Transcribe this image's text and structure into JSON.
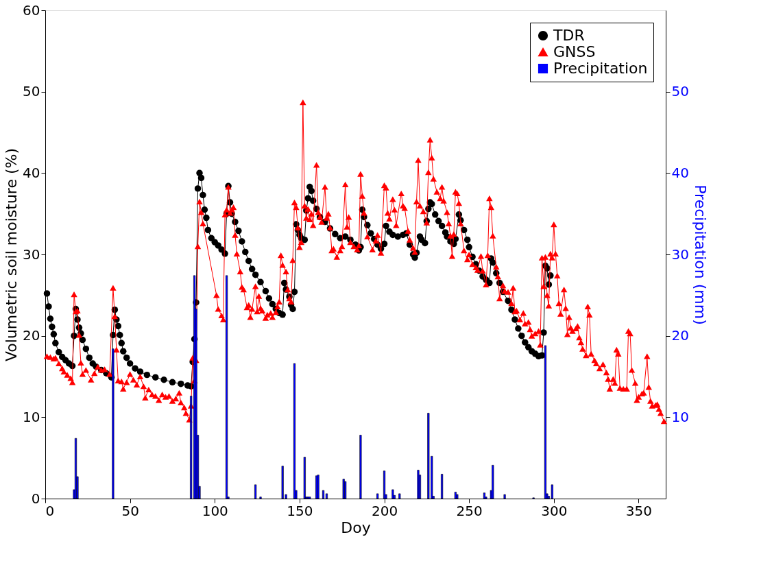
{
  "chart_data": {
    "type": "line",
    "xlabel": "Doy",
    "ylabel": "Volumetric soil moisture (%)",
    "y2label": "Precipitation (mm)",
    "xlim": [
      0,
      366
    ],
    "xticks": [
      0,
      50,
      100,
      150,
      200,
      250,
      300,
      350
    ],
    "ylim": [
      0,
      60
    ],
    "yticks": [
      0,
      10,
      20,
      30,
      40,
      50,
      60
    ],
    "y2lim": [
      0,
      60
    ],
    "y2ticks": [
      10,
      20,
      30,
      40,
      50
    ],
    "grid": false,
    "legend": "top right",
    "series": [
      {
        "name": "TDR",
        "marker": "circle",
        "color": "#000000",
        "x": [
          1,
          2,
          3,
          4,
          5,
          6,
          8,
          10,
          12,
          14,
          16,
          17,
          18,
          19,
          20,
          21,
          22,
          24,
          26,
          28,
          30,
          33,
          36,
          39,
          40,
          41,
          42,
          43,
          44,
          45,
          46,
          48,
          50,
          53,
          56,
          60,
          65,
          70,
          75,
          80,
          84,
          86,
          87,
          88,
          89,
          90,
          91,
          92,
          93,
          94,
          95,
          96,
          98,
          100,
          102,
          104,
          106,
          107,
          108,
          109,
          110,
          112,
          114,
          116,
          118,
          120,
          122,
          124,
          127,
          130,
          132,
          134,
          136,
          138,
          140,
          141,
          142,
          144,
          145,
          146,
          147,
          148,
          149,
          150,
          151,
          153,
          154,
          155,
          156,
          157,
          158,
          160,
          162,
          165,
          168,
          171,
          174,
          177,
          180,
          183,
          185,
          186,
          187,
          188,
          190,
          192,
          194,
          196,
          198,
          200,
          201,
          203,
          205,
          208,
          211,
          213,
          215,
          217,
          218,
          219,
          221,
          222,
          224,
          225,
          226,
          227,
          228,
          230,
          232,
          234,
          236,
          237,
          239,
          241,
          242,
          244,
          245,
          247,
          249,
          250,
          252,
          254,
          256,
          258,
          260,
          262,
          263,
          264,
          266,
          268,
          270,
          273,
          275,
          277,
          279,
          281,
          283,
          285,
          287,
          289,
          291,
          293,
          294,
          295,
          296,
          297,
          298
        ],
        "values": [
          25.2,
          23.6,
          22.1,
          21.1,
          20.2,
          19.1,
          18.0,
          17.4,
          17.0,
          16.6,
          16.3,
          20.0,
          23.3,
          22.0,
          21.0,
          20.3,
          19.5,
          18.4,
          17.3,
          16.6,
          16.2,
          15.8,
          15.4,
          14.9,
          20.1,
          23.2,
          22.0,
          21.2,
          20.1,
          19.1,
          18.1,
          17.3,
          16.6,
          16.0,
          15.6,
          15.2,
          14.9,
          14.6,
          14.3,
          14.1,
          13.9,
          13.8,
          16.8,
          19.6,
          24.1,
          38.1,
          40.0,
          39.4,
          37.3,
          35.5,
          34.5,
          33.0,
          32.0,
          31.5,
          31.1,
          30.6,
          30.1,
          35.0,
          38.4,
          36.4,
          35.0,
          34.0,
          32.9,
          31.6,
          30.3,
          29.2,
          28.2,
          27.5,
          26.6,
          25.5,
          24.6,
          23.9,
          23.3,
          22.8,
          22.6,
          26.5,
          25.7,
          24.8,
          23.8,
          23.3,
          25.4,
          33.7,
          33.0,
          32.4,
          32.0,
          31.8,
          35.4,
          36.9,
          38.3,
          37.8,
          36.6,
          35.6,
          34.6,
          34.0,
          33.2,
          32.5,
          32.0,
          32.2,
          31.8,
          31.2,
          30.5,
          30.9,
          35.5,
          34.6,
          33.6,
          32.6,
          31.9,
          31.2,
          30.7,
          31.3,
          33.5,
          32.8,
          32.4,
          32.2,
          32.4,
          32.6,
          31.2,
          30.0,
          29.6,
          30.2,
          32.2,
          31.8,
          31.4,
          34.1,
          35.6,
          36.4,
          36.2,
          34.9,
          34.1,
          33.5,
          32.7,
          32.2,
          31.6,
          31.3,
          31.9,
          34.9,
          34.2,
          33.0,
          31.8,
          30.9,
          29.7,
          28.8,
          28.0,
          27.3,
          26.9,
          26.5,
          29.5,
          29.0,
          27.7,
          26.5,
          25.4,
          24.3,
          23.2,
          22.0,
          20.9,
          20.0,
          19.2,
          18.6,
          18.1,
          17.8,
          17.5,
          17.6,
          20.4,
          28.6,
          28.3,
          26.3,
          27.4
        ]
      },
      {
        "name": "GNSS",
        "marker": "triangle",
        "color": "#ff0000",
        "x": [
          1,
          3,
          5,
          6,
          8,
          10,
          11,
          13,
          15,
          16,
          17,
          18,
          19,
          20,
          21,
          22,
          24,
          27,
          29,
          31,
          33,
          35,
          38,
          40,
          41,
          42,
          43,
          45,
          46,
          48,
          50,
          52,
          54,
          56,
          58,
          59,
          61,
          63,
          65,
          67,
          69,
          71,
          73,
          75,
          77,
          79,
          80,
          82,
          83,
          85,
          86,
          87,
          88,
          89,
          90,
          91,
          92,
          93,
          101,
          102,
          104,
          105,
          106,
          107,
          108,
          109,
          110,
          111,
          112,
          113,
          115,
          116,
          117,
          119,
          120,
          121,
          122,
          124,
          125,
          126,
          127,
          128,
          130,
          131,
          133,
          134,
          136,
          137,
          138,
          139,
          140,
          142,
          143,
          144,
          145,
          146,
          147,
          148,
          149,
          150,
          151,
          152,
          153,
          154,
          155,
          156,
          157,
          158,
          160,
          161,
          162,
          163,
          165,
          166,
          167,
          168,
          169,
          170,
          172,
          174,
          175,
          177,
          178,
          179,
          180,
          182,
          184,
          185,
          186,
          187,
          188,
          190,
          193,
          195,
          196,
          198,
          200,
          201,
          202,
          203,
          205,
          206,
          207,
          210,
          211,
          212,
          214,
          215,
          217,
          218,
          219,
          220,
          221,
          223,
          225,
          226,
          227,
          228,
          229,
          231,
          233,
          234,
          235,
          237,
          238,
          239,
          240,
          241,
          242,
          243,
          244,
          245,
          247,
          249,
          250,
          252,
          254,
          255,
          257,
          258,
          260,
          261,
          262,
          263,
          264,
          266,
          267,
          268,
          270,
          271,
          273,
          275,
          276,
          277,
          278,
          280,
          282,
          283,
          285,
          286,
          287,
          289,
          291,
          292,
          293,
          294,
          295,
          296,
          297,
          298,
          299,
          300,
          301,
          302,
          303,
          304,
          306,
          307,
          308,
          309,
          310,
          311,
          313,
          314,
          315,
          316,
          317,
          319,
          320,
          321,
          322,
          324,
          325,
          327,
          329,
          331,
          332,
          333,
          335,
          336,
          337,
          338,
          339,
          341,
          343,
          344,
          345,
          346,
          348,
          349,
          350,
          352,
          353,
          355,
          356,
          357,
          358,
          360,
          361,
          362,
          363,
          365
        ],
        "values": [
          17.5,
          17.4,
          17.2,
          17.3,
          16.6,
          16.0,
          15.6,
          15.2,
          14.8,
          14.3,
          25.1,
          23.0,
          23.1,
          20.1,
          16.7,
          15.3,
          15.8,
          14.6,
          15.4,
          16.2,
          15.8,
          15.9,
          15.3,
          25.9,
          22.4,
          18.3,
          14.5,
          14.4,
          13.5,
          14.3,
          15.3,
          14.6,
          14.0,
          15.0,
          13.8,
          12.4,
          13.4,
          12.8,
          12.6,
          12.1,
          12.8,
          12.5,
          12.6,
          12.0,
          12.3,
          13.0,
          11.8,
          11.2,
          10.5,
          9.7,
          11.4,
          17.3,
          14.5,
          17.0,
          31.0,
          36.5,
          35.2,
          33.8,
          25.0,
          23.3,
          22.5,
          22.0,
          34.9,
          35.5,
          38.3,
          35.1,
          35.5,
          35.8,
          32.4,
          30.1,
          27.9,
          26.0,
          25.7,
          23.5,
          23.8,
          22.3,
          23.3,
          26.1,
          23.0,
          24.9,
          23.4,
          23.1,
          22.2,
          22.6,
          22.8,
          22.3,
          22.9,
          23.6,
          24.2,
          29.9,
          28.7,
          27.9,
          25.7,
          24.6,
          24.2,
          29.3,
          36.4,
          35.8,
          33.3,
          30.9,
          31.5,
          48.7,
          36.0,
          34.5,
          35.6,
          34.3,
          35.0,
          33.6,
          41.0,
          35.2,
          34.6,
          34.0,
          38.3,
          34.5,
          35.0,
          33.3,
          30.5,
          30.7,
          29.7,
          30.5,
          31.0,
          38.6,
          33.4,
          34.6,
          31.5,
          31.0,
          30.6,
          31.1,
          39.9,
          37.2,
          35.1,
          32.2,
          30.6,
          31.7,
          32.4,
          30.2,
          38.5,
          38.2,
          35.1,
          34.4,
          36.8,
          35.5,
          33.6,
          37.5,
          36.0,
          35.7,
          32.9,
          31.8,
          30.8,
          30.3,
          36.5,
          41.6,
          36.0,
          35.3,
          33.9,
          40.1,
          44.1,
          41.9,
          39.3,
          37.7,
          36.9,
          38.3,
          36.6,
          35.2,
          33.8,
          32.3,
          29.8,
          32.5,
          37.7,
          37.5,
          36.3,
          33.8,
          30.5,
          29.4,
          30.0,
          28.8,
          28.4,
          28.1,
          29.8,
          28.0,
          26.3,
          29.9,
          36.9,
          35.8,
          32.3,
          28.5,
          27.3,
          24.6,
          26.2,
          25.5,
          25.4,
          24.0,
          25.9,
          23.0,
          23.1,
          22.0,
          22.8,
          21.5,
          21.7,
          20.8,
          20.0,
          20.3,
          20.6,
          18.9,
          29.6,
          26.1,
          29.7,
          25.0,
          23.7,
          30.1,
          29.6,
          33.7,
          30.1,
          27.4,
          24.0,
          22.7,
          25.7,
          23.4,
          20.2,
          22.3,
          21.0,
          20.6,
          20.9,
          21.2,
          19.8,
          19.2,
          18.4,
          17.6,
          23.6,
          22.6,
          17.8,
          17.0,
          16.6,
          16.0,
          16.5,
          15.5,
          14.7,
          13.5,
          14.7,
          14.2,
          18.3,
          17.8,
          13.6,
          13.5,
          13.5,
          20.6,
          20.3,
          15.8,
          14.2,
          12.1,
          12.5,
          12.9,
          13.0,
          17.5,
          13.7,
          12.0,
          11.4,
          11.5,
          11.6,
          11.0,
          10.5,
          9.5
        ]
      },
      {
        "name": "Precipitation",
        "type": "bar",
        "axis": "y2",
        "color": "#0000ff",
        "x": [
          17,
          18,
          19,
          40,
          86,
          88,
          89,
          90,
          91,
          107,
          108,
          124,
          127,
          140,
          142,
          147,
          148,
          153,
          154,
          155,
          156,
          160,
          161,
          164,
          166,
          176,
          177,
          186,
          196,
          200,
          201,
          205,
          206,
          209,
          220,
          221,
          226,
          228,
          229,
          234,
          242,
          243,
          259,
          260,
          263,
          264,
          271,
          288,
          295,
          296,
          297,
          299
        ],
        "values": [
          1.1,
          7.4,
          2.7,
          18.4,
          12.6,
          27.4,
          23.3,
          7.8,
          1.5,
          27.4,
          0.2,
          1.7,
          0.2,
          4.0,
          0.5,
          16.6,
          1.0,
          5.1,
          0.2,
          0.2,
          0.2,
          2.8,
          2.9,
          1.0,
          0.6,
          2.4,
          2.1,
          7.8,
          0.6,
          3.4,
          0.5,
          1.1,
          0.4,
          0.6,
          3.5,
          2.9,
          10.5,
          5.2,
          0.3,
          3.0,
          0.8,
          0.5,
          0.7,
          0.2,
          1.0,
          4.1,
          0.5,
          0.1,
          18.8,
          0.6,
          0.3,
          1.7
        ]
      }
    ]
  }
}
